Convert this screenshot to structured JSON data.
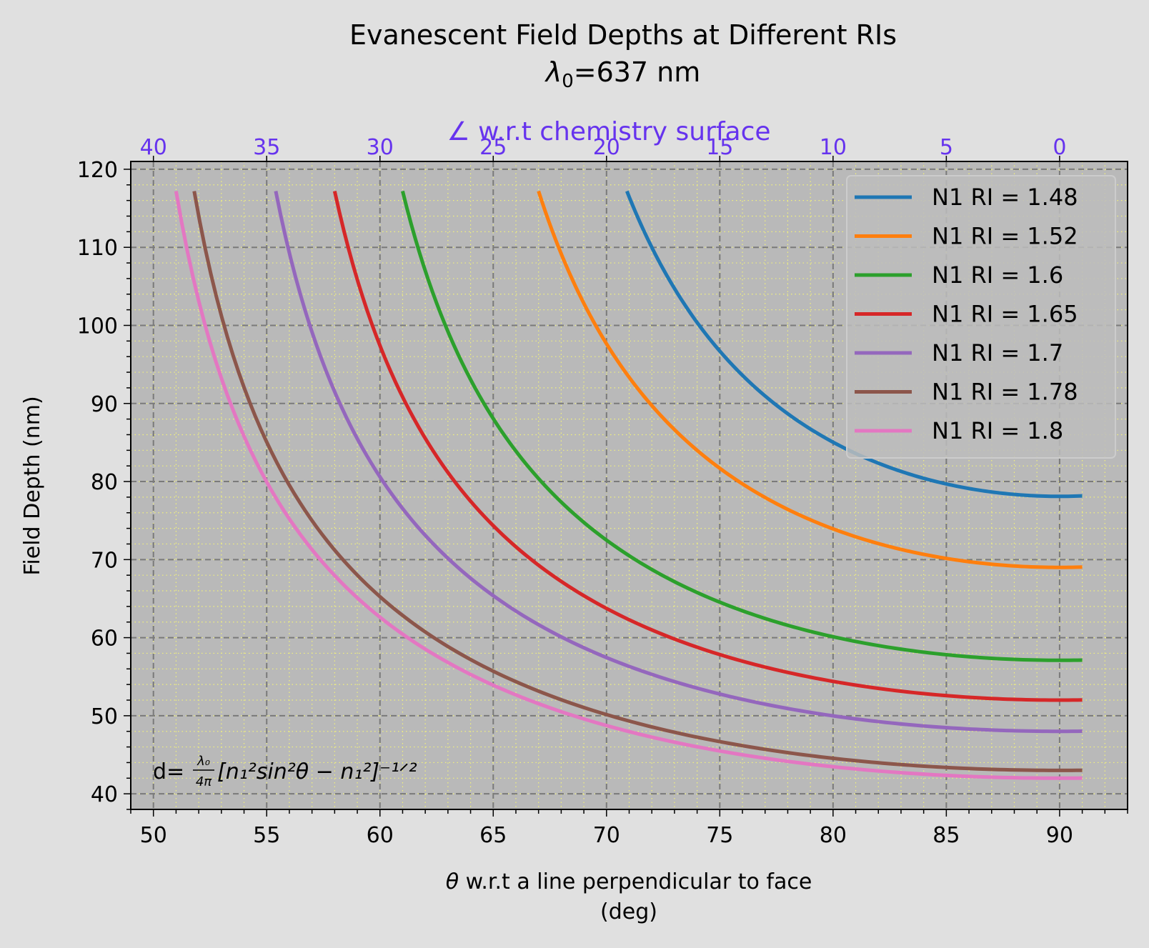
{
  "chart_data": {
    "type": "line",
    "title": "Evanescent Field Depths at Different RIs",
    "subtitle_symbol": "λ",
    "subtitle_sub": "0",
    "subtitle_rest": "=637 nm",
    "xlabel_symbol": "θ",
    "xlabel_line1": " w.r.t a line perpendicular to face",
    "xlabel_line2": "(deg)",
    "ylabel": "Field Depth (nm)",
    "top_axis_label": "∠ w.r.t chemistry surface",
    "xlim": [
      49,
      93
    ],
    "ylim": [
      38,
      121
    ],
    "x_ticks": [
      50,
      55,
      60,
      65,
      70,
      75,
      80,
      85,
      90
    ],
    "y_ticks": [
      40,
      50,
      60,
      70,
      80,
      90,
      100,
      110,
      120
    ],
    "top_ticks": [
      {
        "label": "40",
        "x": 50
      },
      {
        "label": "35",
        "x": 55
      },
      {
        "label": "30",
        "x": 60
      },
      {
        "label": "25",
        "x": 65
      },
      {
        "label": "20",
        "x": 70
      },
      {
        "label": "15",
        "x": 75
      },
      {
        "label": "10",
        "x": 80
      },
      {
        "label": "5",
        "x": 85
      },
      {
        "label": "0",
        "x": 90
      }
    ],
    "grid": true,
    "legend_position": "top-right",
    "wavelength_nm": 637,
    "formula": {
      "prefix": "d=",
      "frac_num": "λ₀",
      "frac_den": "4π",
      "body": "[n₁²sin²θ − n₁²]⁻¹ᐟ²"
    },
    "colors": {
      "plot_bg": "#b9b9b9",
      "figure_bg": "#e0e0e0",
      "top_axis": "#6633ee",
      "minor_grid": "#f2f27a"
    },
    "series": [
      {
        "name": "N1 RI = 1.48",
        "color": "#1f77b4",
        "x_start": 70.9,
        "x_end": 91,
        "y_min": 78.1
      },
      {
        "name": "N1 RI = 1.52",
        "color": "#ff7f0e",
        "x_start": 67.0,
        "x_end": 91,
        "y_min": 69.0
      },
      {
        "name": "N1 RI = 1.6",
        "color": "#2ca02c",
        "x_start": 61.0,
        "x_end": 91,
        "y_min": 57.1
      },
      {
        "name": "N1 RI = 1.65",
        "color": "#d62728",
        "x_start": 58.0,
        "x_end": 91,
        "y_min": 52.0
      },
      {
        "name": "N1 RI = 1.7",
        "color": "#9467bd",
        "x_start": 55.4,
        "x_end": 91,
        "y_min": 48.0
      },
      {
        "name": "N1 RI = 1.78",
        "color": "#8c564b",
        "x_start": 51.8,
        "x_end": 91,
        "y_min": 43.0
      },
      {
        "name": "N1 RI = 1.8",
        "color": "#e377c2",
        "x_start": 51.0,
        "x_end": 91,
        "y_min": 42.0
      }
    ]
  }
}
